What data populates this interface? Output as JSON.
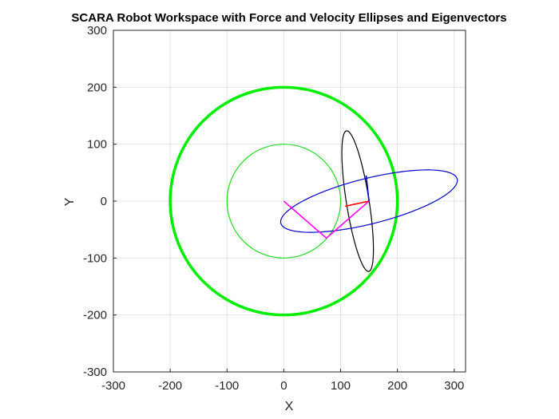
{
  "chart_data": {
    "type": "scatter",
    "title": "SCARA Robot Workspace with Force and Velocity Ellipses and Eigenvectors",
    "xlabel": "X",
    "ylabel": "Y",
    "xlim": [
      -300,
      320
    ],
    "ylim": [
      -300,
      300
    ],
    "xticks": [
      -300,
      -200,
      -100,
      0,
      100,
      200,
      300
    ],
    "yticks": [
      -300,
      -200,
      -100,
      0,
      100,
      200,
      300
    ],
    "xtick_labels": [
      "-300",
      "-200",
      "-100",
      "0",
      "100",
      "200",
      "300"
    ],
    "ytick_labels": [
      "-300",
      "-200",
      "-100",
      "0",
      "100",
      "200",
      "300"
    ],
    "grid": true,
    "series": [
      {
        "kind": "circle",
        "color": "#00ee00",
        "width": "thick",
        "center": [
          0,
          0
        ],
        "radius": 200
      },
      {
        "kind": "circle",
        "color": "#22dd22",
        "width": "thin",
        "center": [
          0,
          0
        ],
        "radius": 100
      },
      {
        "kind": "ellipse",
        "color": "#000000",
        "center": [
          130,
          0
        ],
        "semi_axes": [
          125,
          20
        ],
        "angle_deg": 99
      },
      {
        "kind": "ellipse",
        "color": "#0000cc",
        "center": [
          150,
          0
        ],
        "semi_axes": [
          160,
          40
        ],
        "angle_deg": 14
      },
      {
        "kind": "polyline",
        "color": "#ff00ff",
        "points": [
          [
            0,
            0
          ],
          [
            75,
            -65
          ],
          [
            150,
            0
          ]
        ]
      },
      {
        "kind": "segment",
        "color": "#ff0000",
        "points": [
          [
            150,
            0
          ],
          [
            108,
            -9
          ]
        ]
      },
      {
        "kind": "segment",
        "color": "#0000cc",
        "points": [
          [
            150,
            0
          ],
          [
            145,
            45
          ]
        ]
      }
    ]
  }
}
